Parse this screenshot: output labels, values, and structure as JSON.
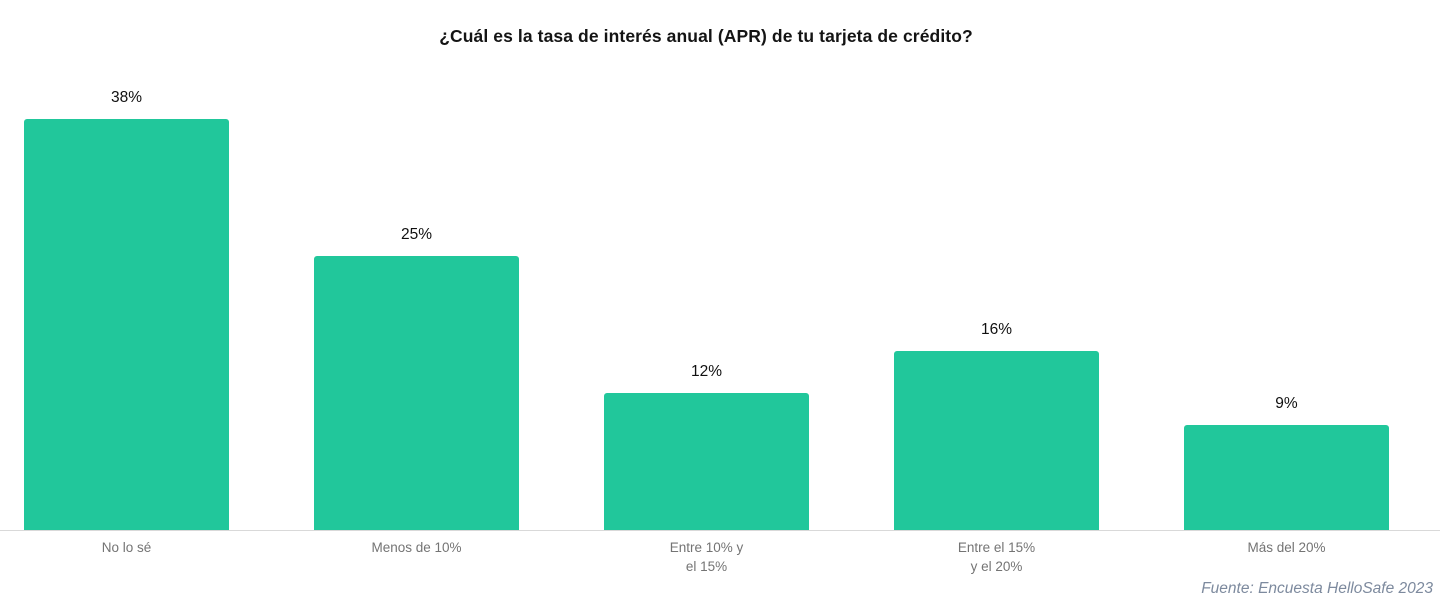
{
  "chart_data": {
    "type": "bar",
    "title": "¿Cuál es la tasa de interés anual (APR) de tu tarjeta de crédito?",
    "categories": [
      "No lo sé",
      "Menos de 10%",
      "Entre 10% y\nel 15%",
      "Entre el 15%\ny el 20%",
      "Más del 20%"
    ],
    "values": [
      38,
      25,
      12,
      16,
      9
    ],
    "value_labels": [
      "38%",
      "25%",
      "12%",
      "16%",
      "9%"
    ],
    "unit": "%",
    "bar_color": "#21c79b",
    "axis_line_color": "#d9d9d9",
    "label_color": "#747474",
    "value_label_color": "#101010",
    "source_color": "#7d8a9e",
    "xlabel": "",
    "ylabel": "",
    "ylim": [
      0,
      49
    ],
    "grid": false,
    "legend": false,
    "source": "Fuente: Encuesta HelloSafe 2023"
  }
}
